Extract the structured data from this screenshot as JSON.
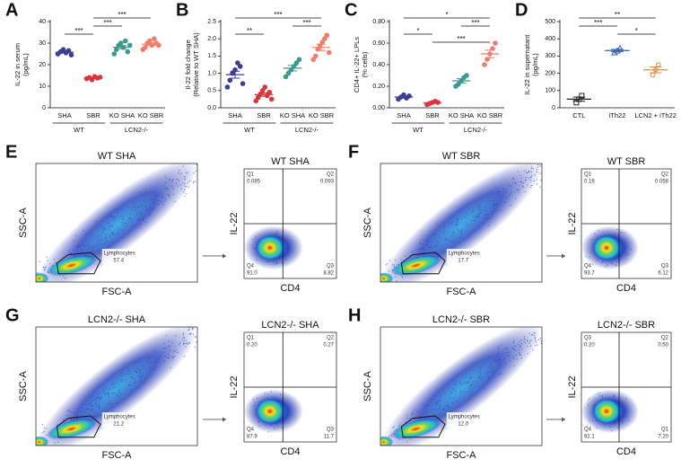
{
  "chart_data": [
    {
      "type": "strip",
      "letter": "A",
      "ylabel": [
        "IL-22 in serum",
        "(pg/mL)"
      ],
      "ylim": [
        0,
        40
      ],
      "yticks": [
        0,
        10,
        20,
        30,
        40
      ],
      "series": [
        {
          "name": "SHA",
          "color": "#3a3f91",
          "marker": "circle",
          "values": [
            25,
            26,
            27,
            25.5,
            26.5,
            24.5
          ],
          "mean": 25.8,
          "error": 0.4
        },
        {
          "name": "SBR",
          "color": "#d7373a",
          "marker": "circle",
          "values": [
            13.5,
            14,
            13,
            14.5,
            13.8,
            14.2
          ],
          "mean": 13.8,
          "error": 0.2
        },
        {
          "name": "KO SHA",
          "color": "#3b9a8e",
          "marker": "circle",
          "values": [
            25,
            27,
            29,
            30,
            28,
            31,
            26,
            29
          ],
          "mean": 28.1,
          "error": 0.7
        },
        {
          "name": "KO SBR",
          "color": "#f07d6c",
          "marker": "circle",
          "values": [
            27,
            28,
            30,
            31,
            29,
            32,
            30,
            29
          ],
          "mean": 29.5,
          "error": 0.6
        }
      ],
      "groups": [
        {
          "label": "WT",
          "categories": [
            "SHA",
            "SBR"
          ]
        },
        {
          "label": "LCN2-/-",
          "categories": [
            "KO SHA",
            "KO SBR"
          ]
        }
      ],
      "annotations": [
        {
          "between": [
            "SBR",
            "KO SBR"
          ],
          "label": "***"
        },
        {
          "between": [
            "SBR",
            "KO SHA"
          ],
          "label": "***"
        },
        {
          "between": [
            "SHA",
            "SBR"
          ],
          "label": "***"
        }
      ]
    },
    {
      "type": "strip",
      "letter": "B",
      "ylabel": [
        "Il-22 fold change",
        "(Relative to WT SHA)"
      ],
      "ylim": [
        0,
        2.5
      ],
      "yticks": [
        {
          "value": 0,
          "label": "0.0"
        },
        0.5,
        {
          "value": 1,
          "label": "1.0"
        },
        1.5,
        {
          "value": 2,
          "label": "2.0"
        },
        2.5
      ],
      "series": [
        {
          "name": "SHA",
          "color": "#3a3f91",
          "marker": "circle",
          "values": [
            0.6,
            0.8,
            1.0,
            1.1,
            1.3,
            1.2,
            0.7
          ],
          "mean": 0.96,
          "error": 0.1
        },
        {
          "name": "SBR",
          "color": "#d7373a",
          "marker": "circle",
          "values": [
            0.2,
            0.3,
            0.4,
            0.5,
            0.6,
            0.35,
            0.45,
            0.25
          ],
          "mean": 0.38,
          "error": 0.05
        },
        {
          "name": "KO SHA",
          "color": "#3b9a8e",
          "marker": "circle",
          "values": [
            0.9,
            1.0,
            1.1,
            1.2,
            1.3,
            1.4
          ],
          "mean": 1.15,
          "error": 0.08
        },
        {
          "name": "KO SBR",
          "color": "#f07d6c",
          "marker": "circle",
          "values": [
            1.4,
            1.5,
            1.7,
            1.8,
            1.9,
            2.0,
            2.1,
            1.6
          ],
          "mean": 1.75,
          "error": 0.09
        }
      ],
      "groups": [
        {
          "label": "WT",
          "categories": [
            "SHA",
            "SBR"
          ]
        },
        {
          "label": "LCN2-/-",
          "categories": [
            "KO SHA",
            "KO SBR"
          ]
        }
      ],
      "annotations": [
        {
          "between": [
            "SHA",
            "KO SBR"
          ],
          "label": "***"
        },
        {
          "between": [
            "KO SHA",
            "KO SBR"
          ],
          "label": "***"
        },
        {
          "between": [
            "SHA",
            "SBR"
          ],
          "label": "**"
        }
      ]
    },
    {
      "type": "strip",
      "letter": "C",
      "ylabel": [
        "CD4+ IL-22+ LPLs",
        "(% cells)"
      ],
      "ylim": [
        0,
        0.8
      ],
      "yticks": [
        {
          "value": 0,
          "label": "0.00"
        },
        {
          "value": 0.2,
          "label": "0.20"
        },
        {
          "value": 0.4,
          "label": "0.40"
        },
        {
          "value": 0.6,
          "label": "0.60"
        },
        {
          "value": 0.8,
          "label": "0.80"
        }
      ],
      "series": [
        {
          "name": "SHA",
          "color": "#3a3f91",
          "marker": "circle",
          "values": [
            0.08,
            0.1,
            0.12,
            0.09,
            0.11
          ],
          "mean": 0.1,
          "error": 0.01
        },
        {
          "name": "SBR",
          "color": "#d7373a",
          "marker": "circle",
          "values": [
            0.03,
            0.04,
            0.05,
            0.06,
            0.05
          ],
          "mean": 0.046,
          "error": 0.005
        },
        {
          "name": "KO SHA",
          "color": "#3b9a8e",
          "marker": "circle",
          "values": [
            0.2,
            0.22,
            0.25,
            0.28,
            0.3
          ],
          "mean": 0.25,
          "error": 0.02
        },
        {
          "name": "KO SBR",
          "color": "#f07d6c",
          "marker": "circle",
          "values": [
            0.4,
            0.45,
            0.5,
            0.55,
            0.6
          ],
          "mean": 0.5,
          "error": 0.035
        }
      ],
      "groups": [
        {
          "label": "WT",
          "categories": [
            "SHA",
            "SBR"
          ]
        },
        {
          "label": "LCN2-/-",
          "categories": [
            "KO SHA",
            "KO SBR"
          ]
        }
      ],
      "annotations": [
        {
          "between": [
            "SHA",
            "KO SBR"
          ],
          "label": "*"
        },
        {
          "between": [
            "KO SHA",
            "KO SBR"
          ],
          "label": "***"
        },
        {
          "between": [
            "SHA",
            "SBR"
          ],
          "label": "*"
        },
        {
          "between": [
            "SBR",
            "KO SBR"
          ],
          "label": "***"
        }
      ]
    },
    {
      "type": "strip",
      "letter": "D",
      "ylabel": [
        "IL-22 in supernatant",
        "(pg/mL)"
      ],
      "ylim": [
        0,
        500
      ],
      "yticks": [
        0,
        100,
        200,
        300,
        400,
        500
      ],
      "series": [
        {
          "name": "CTL",
          "color": "#222222",
          "marker": "square",
          "values": [
            30,
            50,
            70
          ],
          "mean": 50,
          "error": 12
        },
        {
          "name": "iTh22",
          "color": "#3a5fa8",
          "marker": "triangle",
          "values": [
            320,
            330,
            345
          ],
          "mean": 332,
          "error": 7
        },
        {
          "name": "LCN2 + iTh22",
          "color": "#e08a3c",
          "marker": "circle",
          "values": [
            190,
            220,
            250
          ],
          "mean": 220,
          "error": 17
        }
      ],
      "annotations": [
        {
          "between": [
            "CTL",
            "LCN2 + iTh22"
          ],
          "label": "**"
        },
        {
          "between": [
            "CTL",
            "iTh22"
          ],
          "label": "***"
        },
        {
          "between": [
            "iTh22",
            "LCN2 + iTh22"
          ],
          "label": "*"
        }
      ]
    }
  ],
  "flow_panels": [
    {
      "letter": "E",
      "gate_plot": {
        "title": "WT SHA",
        "ylabel": "SSC-A",
        "xlabel": "FSC-A",
        "gate_name": "Lymphocytes",
        "gate_value": "57.4"
      },
      "quadrant_plot": {
        "title": "WT SHA",
        "ylabel": "IL-22",
        "xlabel": "CD4",
        "quadrants": [
          {
            "name": "Q1",
            "value": "0.085"
          },
          {
            "name": "Q2",
            "value": "0.093"
          },
          {
            "name": "Q4",
            "value": "91.0"
          },
          {
            "name": "Q3",
            "value": "8.82"
          }
        ]
      }
    },
    {
      "letter": "F",
      "gate_plot": {
        "title": "WT SBR",
        "ylabel": "SSC-A",
        "xlabel": "FSC-A",
        "gate_name": "Lymphocytes",
        "gate_value": "17.7"
      },
      "quadrant_plot": {
        "title": "WT SBR",
        "ylabel": "IL-22",
        "xlabel": "CD4",
        "quadrants": [
          {
            "name": "Q1",
            "value": "0.16"
          },
          {
            "name": "Q2",
            "value": "0.058"
          },
          {
            "name": "Q4",
            "value": "93.7"
          },
          {
            "name": "Q3",
            "value": "6.12"
          }
        ]
      }
    },
    {
      "letter": "G",
      "gate_plot": {
        "title": "LCN2-/- SHA",
        "ylabel": "SSC-A",
        "xlabel": "FSC-A",
        "gate_name": "Lymphocytes",
        "gate_value": "21.2"
      },
      "quadrant_plot": {
        "title": "LCN2-/- SHA",
        "ylabel": "IL-22",
        "xlabel": "CD4",
        "quadrants": [
          {
            "name": "Q1",
            "value": "0.20"
          },
          {
            "name": "Q2",
            "value": "0.27"
          },
          {
            "name": "Q4",
            "value": "87.9"
          },
          {
            "name": "Q3",
            "value": "11.7"
          }
        ]
      }
    },
    {
      "letter": "H",
      "gate_plot": {
        "title": "LCN2-/- SBR",
        "ylabel": "SSC-A",
        "xlabel": "FSC-A",
        "gate_name": "Lymphocytes",
        "gate_value": "12.0"
      },
      "quadrant_plot": {
        "title": "LCN2-/- SBR",
        "ylabel": "IL-22",
        "xlabel": "CD4",
        "quadrants": [
          {
            "name": "Q3",
            "value": "0.20"
          },
          {
            "name": "Q2",
            "value": "0.50"
          },
          {
            "name": "Q4",
            "value": "92.1"
          },
          {
            "name": "Q1",
            "value": "7.20"
          }
        ]
      }
    }
  ]
}
